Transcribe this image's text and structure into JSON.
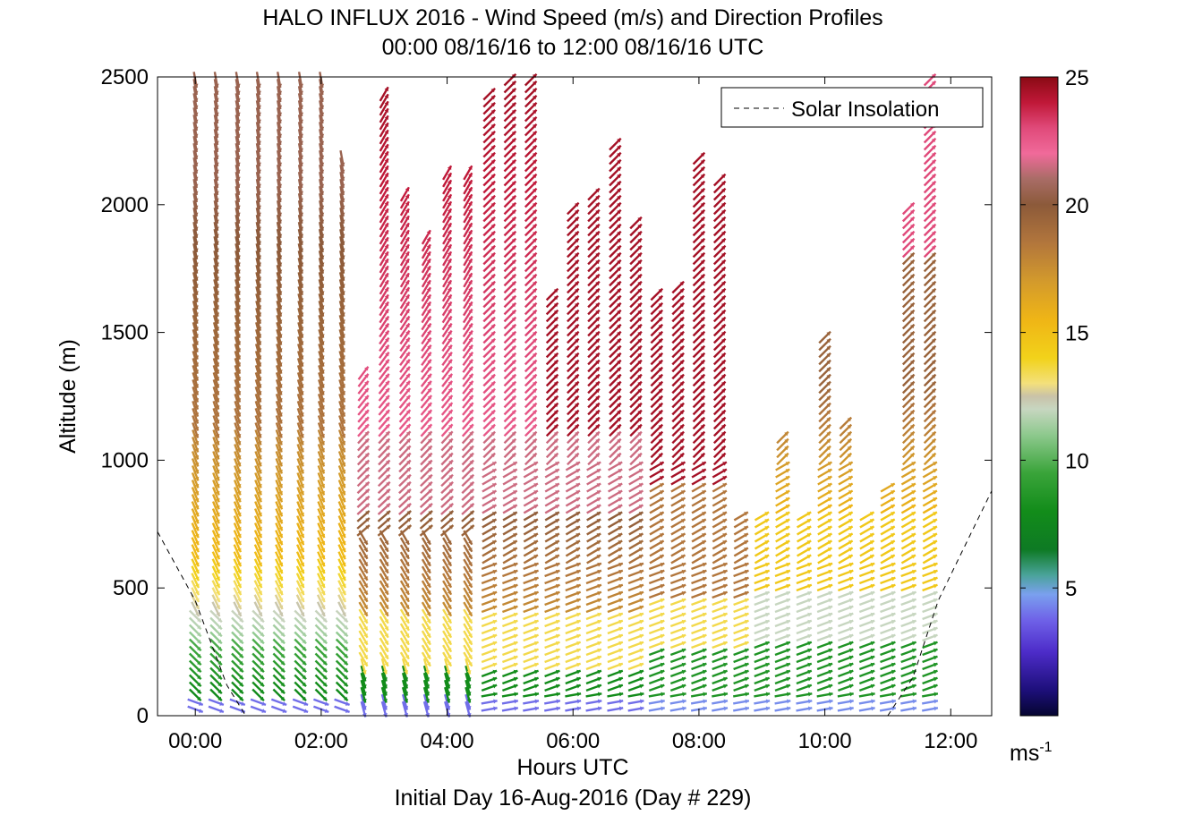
{
  "chart_data": {
    "type": "quiver",
    "title": "HALO INFLUX 2016 - Wind Speed (m/s) and Direction Profiles",
    "subtitle": "00:00 08/16/16 to 12:00 08/16/16  UTC",
    "xlabel": "Hours UTC",
    "footer": "Initial Day 16-Aug-2016 (Day # 229)",
    "ylabel": "Altitude (m)",
    "xlim": [
      -0.6,
      12.65
    ],
    "ylim": [
      0,
      2500
    ],
    "x_ticks": [
      0,
      2,
      4,
      6,
      8,
      10,
      12
    ],
    "x_tick_labels": [
      "00:00",
      "02:00",
      "04:00",
      "06:00",
      "08:00",
      "10:00",
      "12:00"
    ],
    "y_ticks": [
      0,
      500,
      1000,
      1500,
      2000,
      2500
    ],
    "y_tick_labels": [
      "0",
      "500",
      "1000",
      "1500",
      "2000",
      "2500"
    ],
    "legend": {
      "label": "Solar Insolation",
      "style": "dashed",
      "placement": "top-right"
    },
    "colorbar": {
      "min": 0,
      "max": 25,
      "ticks": [
        5,
        10,
        15,
        20,
        25
      ],
      "tick_labels": [
        "5",
        "10",
        "15",
        "20",
        "25"
      ],
      "unit_base": "ms",
      "unit_exp": "-1"
    },
    "solar_insolation": {
      "x": [
        -0.6,
        0.0,
        0.5,
        0.8,
        11.0,
        11.4,
        11.8,
        12.65
      ],
      "y": [
        720,
        450,
        120,
        0,
        0,
        150,
        450,
        880
      ]
    },
    "profile_times": [
      0.0,
      0.33,
      0.67,
      1.0,
      1.33,
      1.67,
      2.0,
      2.33,
      2.67,
      3.0,
      3.33,
      3.67,
      4.0,
      4.33,
      4.67,
      5.0,
      5.33,
      5.67,
      6.0,
      6.33,
      6.67,
      7.0,
      7.33,
      7.67,
      8.0,
      8.33,
      8.67,
      9.0,
      9.33,
      9.67,
      10.0,
      10.33,
      10.67,
      11.0,
      11.33,
      11.67
    ],
    "profile_top_altitude": [
      2500,
      2500,
      2500,
      2500,
      2500,
      2500,
      2500,
      2200,
      1350,
      2450,
      2050,
      1900,
      2150,
      2150,
      2450,
      2500,
      2500,
      1650,
      2000,
      2050,
      2250,
      1950,
      1650,
      1700,
      2200,
      2100,
      800,
      800,
      1100,
      800,
      1500,
      1150,
      800,
      900,
      2000,
      2500
    ],
    "direction_sample_deg": [
      {
        "time": 0.0,
        "alt": 50,
        "dir_from_deg": 290
      },
      {
        "time": 0.0,
        "alt": 300,
        "dir_from_deg": 300
      },
      {
        "time": 0.0,
        "alt": 700,
        "dir_from_deg": 320
      },
      {
        "time": 0.0,
        "alt": 1500,
        "dir_from_deg": 335
      },
      {
        "time": 0.0,
        "alt": 2400,
        "dir_from_deg": 330
      },
      {
        "time": 4.0,
        "alt": 100,
        "dir_from_deg": 350
      },
      {
        "time": 4.0,
        "alt": 600,
        "dir_from_deg": 330
      },
      {
        "time": 4.0,
        "alt": 1500,
        "dir_from_deg": 230
      },
      {
        "time": 8.0,
        "alt": 100,
        "dir_from_deg": 245
      },
      {
        "time": 8.0,
        "alt": 500,
        "dir_from_deg": 250
      },
      {
        "time": 8.0,
        "alt": 1500,
        "dir_from_deg": 220
      },
      {
        "time": 11.67,
        "alt": 100,
        "dir_from_deg": 250
      },
      {
        "time": 11.67,
        "alt": 800,
        "dir_from_deg": 260
      },
      {
        "time": 11.67,
        "alt": 2200,
        "dir_from_deg": 245
      }
    ]
  }
}
